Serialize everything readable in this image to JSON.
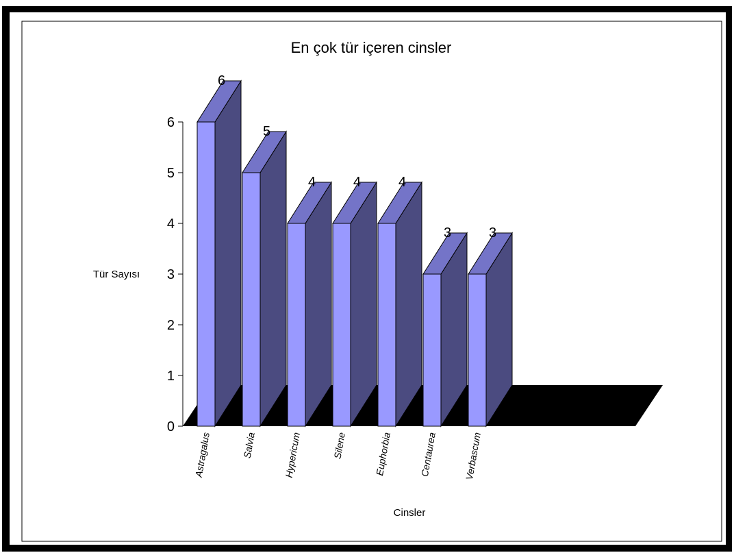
{
  "chart_data": {
    "type": "bar",
    "title": "En çok tür içeren cinsler",
    "xlabel": "Cinsler",
    "ylabel": "Tür Sayısı",
    "categories": [
      "Astragalus",
      "Salvia",
      "Hypericum",
      "Silene",
      "Euphorbia",
      "Centaurea",
      "Verbascum"
    ],
    "values": [
      6,
      5,
      4,
      4,
      4,
      3,
      3
    ],
    "ylim": [
      0,
      6
    ],
    "yticks": [
      0,
      1,
      2,
      3,
      4,
      5,
      6
    ],
    "grid": false,
    "legend": "none",
    "colors": {
      "bar_front": "#9999FF",
      "bar_side": "#4B4B80",
      "bar_top": "#7474C8",
      "floor": "#000000"
    }
  }
}
